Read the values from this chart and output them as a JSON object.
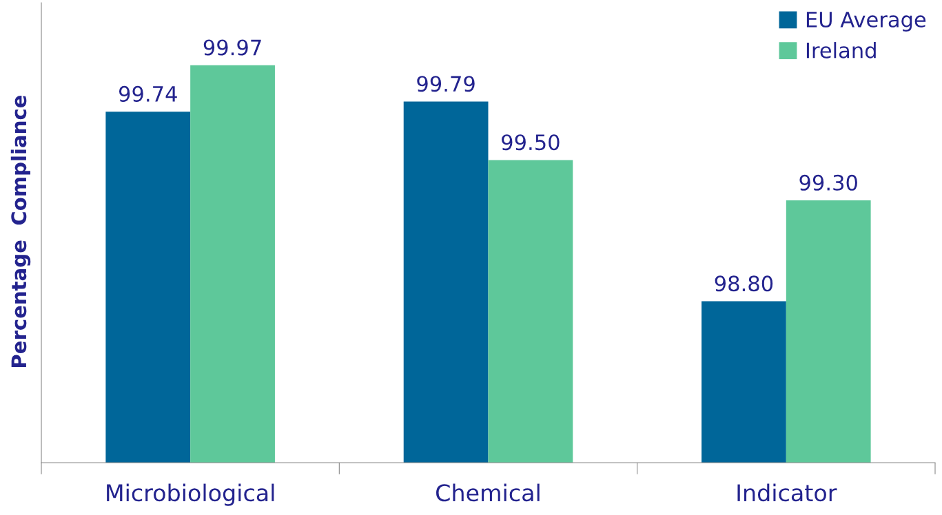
{
  "chart_data": {
    "type": "bar",
    "ylabel": "Percentage  Compliance",
    "categories": [
      "Microbiological",
      "Chemical",
      "Indicator"
    ],
    "series": [
      {
        "name": "EU Average",
        "color": "#006699",
        "values": [
          99.74,
          99.79,
          98.8
        ],
        "value_labels": [
          "99.74",
          "99.79",
          "98.80"
        ]
      },
      {
        "name": "Ireland",
        "color": "#5ec89a",
        "values": [
          99.97,
          99.5,
          99.3
        ],
        "value_labels": [
          "99.97",
          "99.50",
          "99.30"
        ]
      }
    ],
    "ylim": [
      98,
      100.28
    ],
    "tick_labels": "x",
    "grid": false,
    "legend": "top right"
  }
}
